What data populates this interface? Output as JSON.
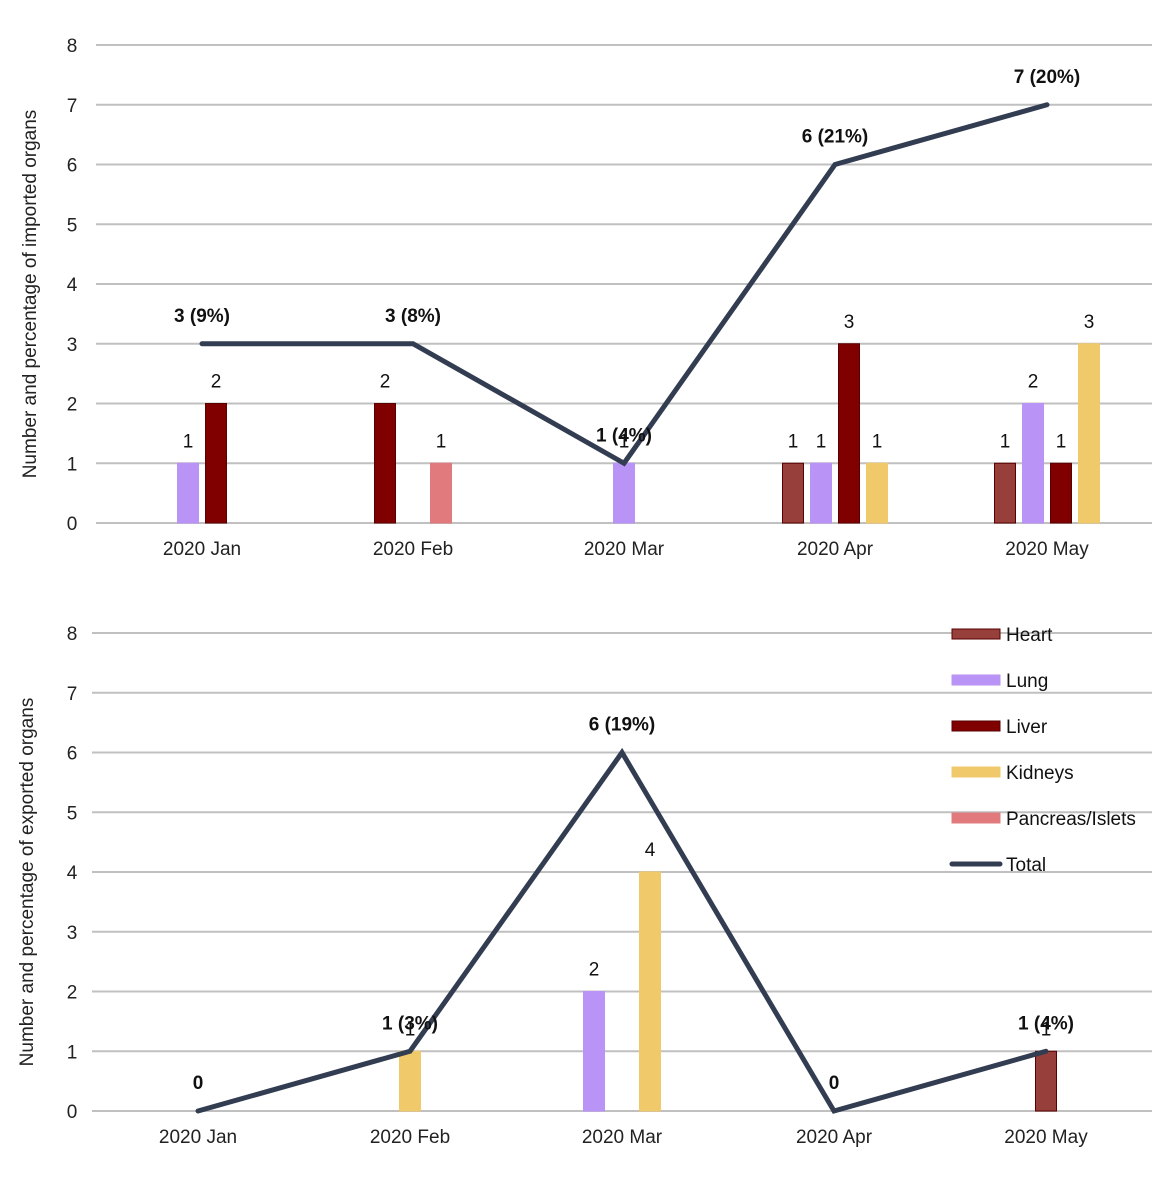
{
  "colors": {
    "Heart": "#973f3a",
    "Lung": "#b993f5",
    "Liver": "#800000",
    "Kidneys": "#f0c96a",
    "Pancreas/Islets": "#e07a7c",
    "Total": "#333d52",
    "grid": "#c0c0c0"
  },
  "legend": {
    "position": "right",
    "items": [
      "Heart",
      "Lung",
      "Liver",
      "Kidneys",
      "Pancreas/Islets",
      "Total"
    ]
  },
  "chart_data": [
    {
      "type": "bar",
      "title": "",
      "xlabel": "",
      "ylabel": "Number and percentage of imported organs",
      "ylim": [
        0,
        8
      ],
      "yticks": [
        "0",
        "1",
        "2",
        "3",
        "4",
        "5",
        "6",
        "7",
        "8"
      ],
      "grid": true,
      "categories": [
        "2020 Jan",
        "2020 Feb",
        "2020 Mar",
        "2020 Apr",
        "2020 May"
      ],
      "series": [
        {
          "name": "Heart",
          "values": [
            null,
            null,
            null,
            1,
            1
          ]
        },
        {
          "name": "Lung",
          "values": [
            1,
            null,
            1,
            1,
            2
          ]
        },
        {
          "name": "Liver",
          "values": [
            2,
            2,
            null,
            3,
            1
          ]
        },
        {
          "name": "Kidneys",
          "values": [
            null,
            null,
            null,
            1,
            3
          ]
        },
        {
          "name": "Pancreas/Islets",
          "values": [
            null,
            1,
            null,
            null,
            null
          ]
        }
      ],
      "total": {
        "name": "Total",
        "type": "line",
        "values": [
          3,
          3,
          1,
          6,
          7
        ],
        "labels": [
          "3 (9%)",
          "3 (8%)",
          "1 (4%)",
          "6 (21%)",
          "7 (20%)"
        ]
      }
    },
    {
      "type": "bar",
      "title": "",
      "xlabel": "",
      "ylabel": "Number and percentage of exported organs",
      "ylim": [
        0,
        8
      ],
      "yticks": [
        "0",
        "1",
        "2",
        "3",
        "4",
        "5",
        "6",
        "7",
        "8"
      ],
      "grid": true,
      "categories": [
        "2020 Jan",
        "2020 Feb",
        "2020 Mar",
        "2020 Apr",
        "2020 May"
      ],
      "series": [
        {
          "name": "Heart",
          "values": [
            null,
            null,
            null,
            null,
            1
          ]
        },
        {
          "name": "Lung",
          "values": [
            null,
            null,
            2,
            null,
            null
          ]
        },
        {
          "name": "Liver",
          "values": [
            null,
            null,
            null,
            null,
            null
          ]
        },
        {
          "name": "Kidneys",
          "values": [
            null,
            1,
            4,
            null,
            null
          ]
        },
        {
          "name": "Pancreas/Islets",
          "values": [
            null,
            null,
            null,
            null,
            null
          ]
        }
      ],
      "total": {
        "name": "Total",
        "type": "line",
        "values": [
          0,
          1,
          6,
          0,
          1
        ],
        "labels": [
          "0",
          "1 (3%)",
          "6 (19%)",
          "0",
          "1 (4%)"
        ]
      }
    }
  ]
}
